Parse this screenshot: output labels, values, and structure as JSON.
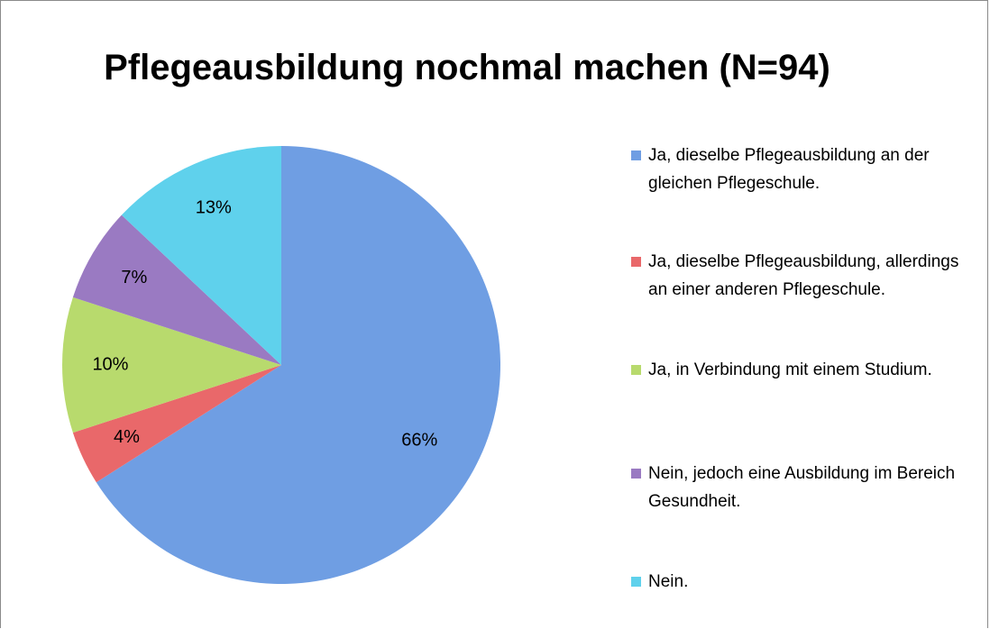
{
  "chart_data": {
    "type": "pie",
    "title": "Pflegeausbildung nochmal machen (N=94)",
    "categories": [
      "Ja, dieselbe Pflegeausbildung an der gleichen Pflegeschule.",
      "Ja, dieselbe Pflegeausbildung, allerdings an einer anderen Pflegeschule.",
      "Ja, in Verbindung mit einem Studium.",
      "Nein, jedoch eine Ausbildung im Bereich Gesundheit.",
      "Nein."
    ],
    "values": [
      66,
      4,
      10,
      7,
      13
    ],
    "value_labels": [
      "66%",
      "4%",
      "10%",
      "7%",
      "13%"
    ],
    "colors": [
      "#6f9ee3",
      "#e9686a",
      "#b8da6d",
      "#9a7ac2",
      "#5fd1ec"
    ],
    "legend": "right"
  }
}
